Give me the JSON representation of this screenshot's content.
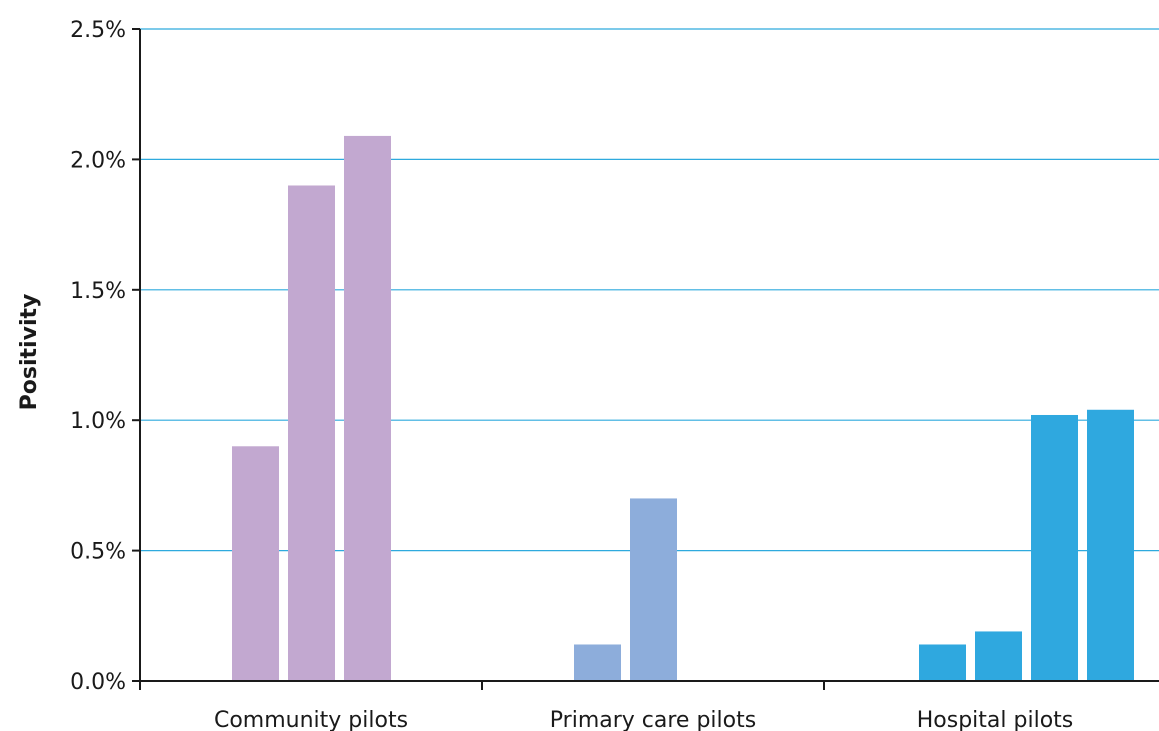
{
  "chart_data": {
    "type": "bar",
    "title": "",
    "xlabel": "",
    "ylabel": "Positivity",
    "ylim": [
      0,
      0.025
    ],
    "y_tick_labels": [
      "0.0%",
      "0.5%",
      "1.0%",
      "1.5%",
      "2.0%",
      "2.5%"
    ],
    "y_ticks": [
      0,
      0.005,
      0.01,
      0.015,
      0.02,
      0.025
    ],
    "grid": true,
    "legend": "none",
    "colors": {
      "grid": "#2eaade",
      "axis": "#1a1a1a"
    },
    "groups": [
      {
        "name": "Community pilots",
        "color": "#c2a8d0",
        "values": [
          0.009,
          0.019,
          0.0209
        ]
      },
      {
        "name": "Primary care pilots",
        "color": "#8daddb",
        "values": [
          0.0014,
          0.007
        ]
      },
      {
        "name": "Hospital pilots",
        "color": "#2fa8df",
        "values": [
          0.0014,
          0.0019,
          0.0102,
          0.0104
        ]
      }
    ]
  }
}
